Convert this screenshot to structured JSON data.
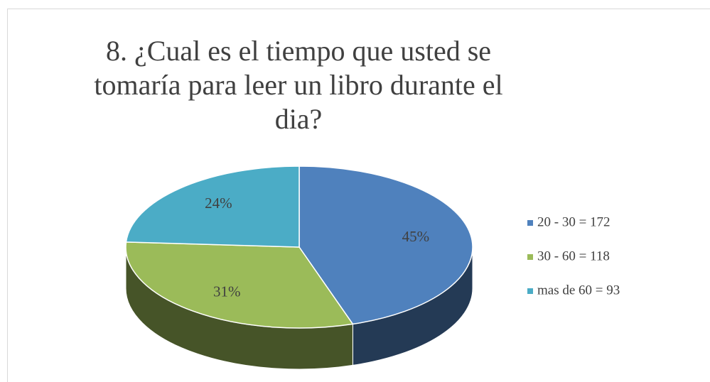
{
  "chart_data": {
    "type": "pie",
    "title": "8. ¿Cual es el tiempo que usted se tomaría para leer un libro durante el dia?",
    "categories": [
      "20 - 30 = 172",
      "30 - 60 = 118",
      "mas de 60 = 93"
    ],
    "values": [
      45,
      31,
      24
    ],
    "value_labels": [
      "45%",
      "31%",
      "24%"
    ],
    "colors": [
      "#4f81bd",
      "#9bbb59",
      "#4bacc6"
    ],
    "legend": "right"
  }
}
